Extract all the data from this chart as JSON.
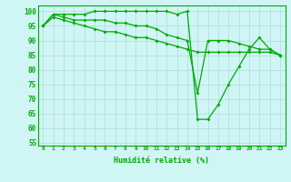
{
  "line1": [
    95,
    99,
    99,
    99,
    99,
    100,
    100,
    100,
    100,
    100,
    100,
    100,
    100,
    99,
    100,
    63,
    63,
    68,
    75,
    81,
    87,
    91,
    87,
    85
  ],
  "line2": [
    95,
    99,
    98,
    97,
    97,
    97,
    97,
    96,
    96,
    95,
    95,
    94,
    92,
    91,
    90,
    72,
    90,
    90,
    90,
    89,
    88,
    87,
    87,
    85
  ],
  "line3": [
    95,
    98,
    97,
    96,
    95,
    94,
    93,
    93,
    92,
    91,
    91,
    90,
    89,
    88,
    87,
    86,
    86,
    86,
    86,
    86,
    86,
    86,
    86,
    85
  ],
  "hours": [
    0,
    1,
    2,
    3,
    4,
    5,
    6,
    7,
    8,
    9,
    10,
    11,
    12,
    13,
    14,
    15,
    16,
    17,
    18,
    19,
    20,
    21,
    22,
    23
  ],
  "line_color": "#00aa00",
  "bg_color": "#d0f5f5",
  "grid_color": "#aadddd",
  "xlabel": "Humidité relative (%)",
  "ylim": [
    54,
    102
  ],
  "yticks": [
    55,
    60,
    65,
    70,
    75,
    80,
    85,
    90,
    95,
    100
  ],
  "xtick_labels": [
    "0",
    "1",
    "2",
    "3",
    "4",
    "5",
    "6",
    "7",
    "8",
    "9",
    "10",
    "11",
    "12",
    "13",
    "14",
    "15",
    "16",
    "17",
    "18",
    "19",
    "20",
    "21",
    "22",
    "23"
  ]
}
